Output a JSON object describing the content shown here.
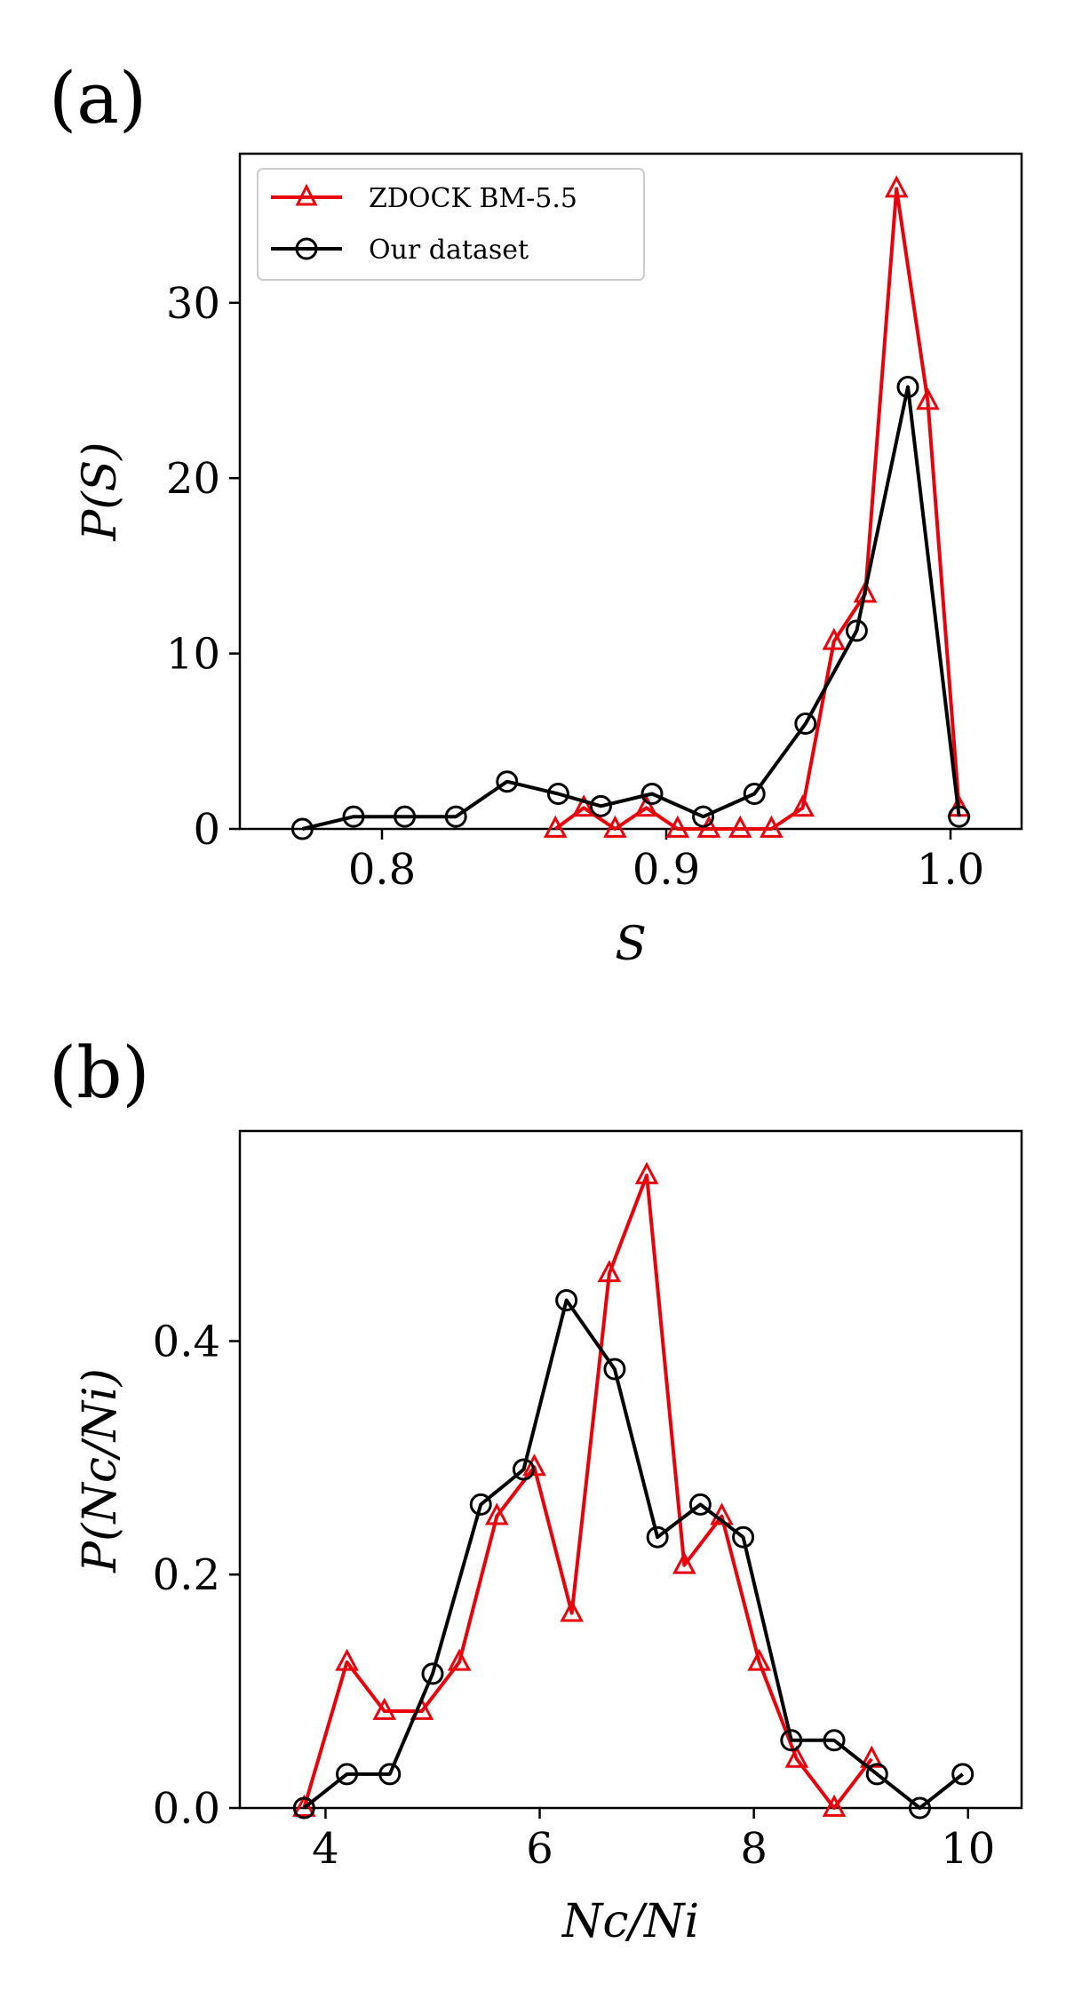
{
  "chart_data": [
    {
      "panel": "(a)",
      "type": "line",
      "xlabel": "S",
      "ylabel": "P(S)",
      "xlim": [
        0.75,
        1.025
      ],
      "ylim": [
        0,
        38.5
      ],
      "xticks": [
        0.8,
        0.9,
        1.0
      ],
      "xtick_labels": [
        "0.8",
        "0.9",
        "1.0"
      ],
      "yticks": [
        0,
        10,
        20,
        30
      ],
      "ytick_labels": [
        "0",
        "10",
        "20",
        "30"
      ],
      "legend": "upper left",
      "series": [
        {
          "name": "ZDOCK BM-5.5",
          "color": "#e8000b",
          "marker": "triangle",
          "x": [
            0.861,
            0.871,
            0.882,
            0.893,
            0.904,
            0.915,
            0.926,
            0.937,
            0.948,
            0.959,
            0.97,
            0.981,
            0.992,
            1.003
          ],
          "y": [
            0,
            1.2,
            0,
            1.2,
            0,
            0,
            0,
            0,
            1.2,
            10.7,
            13.4,
            36.5,
            24.4,
            1.2
          ]
        },
        {
          "name": "Our dataset",
          "color": "#000000",
          "marker": "circle",
          "x": [
            0.772,
            0.79,
            0.808,
            0.826,
            0.844,
            0.862,
            0.877,
            0.895,
            0.913,
            0.931,
            0.949,
            0.967,
            0.985,
            1.003
          ],
          "y": [
            0,
            0.7,
            0.7,
            0.7,
            2.7,
            2.0,
            1.3,
            2.0,
            0.7,
            2.0,
            6.0,
            11.3,
            25.2,
            0.7
          ]
        }
      ]
    },
    {
      "panel": "(b)",
      "type": "line",
      "xlabel": "Nc/Ni",
      "ylabel": "P(Nc/Ni)",
      "xlim": [
        3.2,
        10.5
      ],
      "ylim": [
        0,
        0.58
      ],
      "xticks": [
        4,
        6,
        8,
        10
      ],
      "xtick_labels": [
        "4",
        "6",
        "8",
        "10"
      ],
      "yticks": [
        0,
        0.2,
        0.4
      ],
      "ytick_labels": [
        "0.0",
        "0.2",
        "0.4"
      ],
      "series": [
        {
          "name": "ZDOCK BM-5.5",
          "color": "#e8000b",
          "marker": "triangle",
          "x": [
            3.8,
            4.2,
            4.55,
            4.9,
            5.25,
            5.6,
            5.95,
            6.3,
            6.65,
            7.0,
            7.35,
            7.7,
            8.05,
            8.4,
            8.75,
            9.1
          ],
          "y": [
            0,
            0.125,
            0.083,
            0.083,
            0.125,
            0.25,
            0.292,
            0.167,
            0.458,
            0.542,
            0.208,
            0.25,
            0.125,
            0.042,
            0,
            0.042
          ]
        },
        {
          "name": "Our dataset",
          "color": "#000000",
          "marker": "circle",
          "x": [
            3.8,
            4.2,
            4.6,
            5.0,
            5.45,
            5.85,
            6.25,
            6.7,
            7.1,
            7.5,
            7.9,
            8.35,
            8.75,
            9.15,
            9.55,
            9.95
          ],
          "y": [
            0,
            0.029,
            0.029,
            0.115,
            0.26,
            0.29,
            0.435,
            0.376,
            0.232,
            0.26,
            0.232,
            0.058,
            0.058,
            0.029,
            0,
            0.029
          ]
        }
      ]
    }
  ]
}
